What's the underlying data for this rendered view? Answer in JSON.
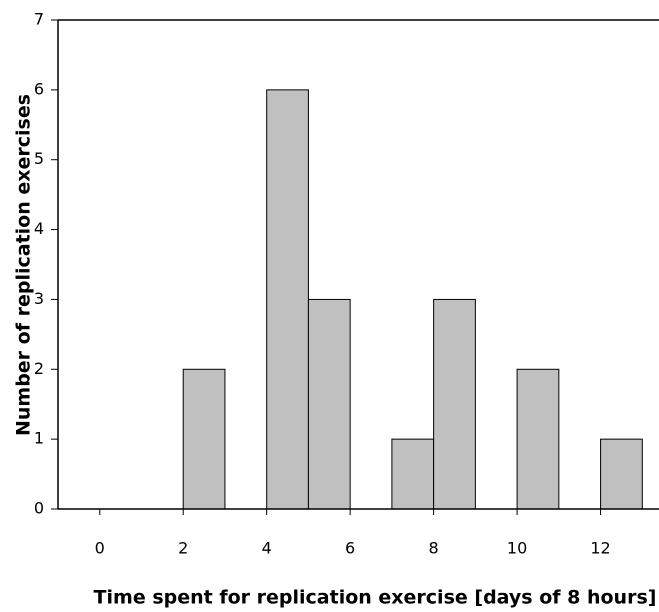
{
  "chart_data": {
    "type": "histogram",
    "x_label": "Time spent for replication exercise [days of 8 hours]",
    "y_label": "Number of replication exercises",
    "bins": [
      0,
      1,
      2,
      3,
      4,
      5,
      6,
      7,
      8,
      9,
      10,
      11,
      12,
      13
    ],
    "values": [
      0,
      0,
      2,
      0,
      6,
      3,
      0,
      1,
      3,
      0,
      2,
      0,
      1
    ],
    "color": "#c0c0c0",
    "xlim": [
      -1,
      13.4
    ],
    "xticks": [
      0,
      2,
      4,
      6,
      8,
      10,
      12
    ],
    "ylim": [
      0,
      7
    ],
    "yticks": [
      0,
      1,
      2,
      3,
      4,
      5,
      6,
      7
    ]
  }
}
